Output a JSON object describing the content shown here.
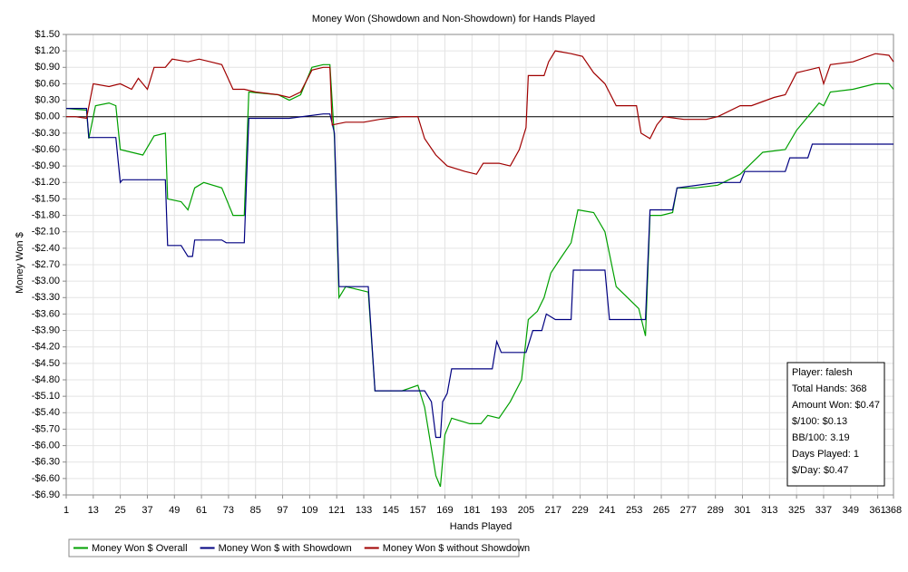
{
  "chart_data": {
    "type": "line",
    "title": "Money Won (Showdown and Non-Showdown) for Hands Played",
    "xlabel": "Hands Played",
    "ylabel": "Money Won $",
    "xlim": [
      1,
      368
    ],
    "ylim": [
      -6.9,
      1.5
    ],
    "grid": true,
    "zero_line": true,
    "legend": "bottom",
    "xticks": [
      1,
      13,
      25,
      37,
      49,
      61,
      73,
      85,
      97,
      109,
      121,
      133,
      145,
      157,
      169,
      181,
      193,
      205,
      217,
      229,
      241,
      253,
      265,
      277,
      289,
      301,
      313,
      325,
      337,
      349,
      361,
      368
    ],
    "yticks": [
      {
        "value": 1.5,
        "label": "$1.50"
      },
      {
        "value": 1.2,
        "label": "$1.20"
      },
      {
        "value": 0.9,
        "label": "$0.90"
      },
      {
        "value": 0.6,
        "label": "$0.60"
      },
      {
        "value": 0.3,
        "label": "$0.30"
      },
      {
        "value": 0,
        "label": "$0.00"
      },
      {
        "value": -0.3,
        "label": "-$0.30"
      },
      {
        "value": -0.6,
        "label": "-$0.60"
      },
      {
        "value": -0.9,
        "label": "-$0.90"
      },
      {
        "value": -1.2,
        "label": "-$1.20"
      },
      {
        "value": -1.5,
        "label": "-$1.50"
      },
      {
        "value": -1.8,
        "label": "-$1.80"
      },
      {
        "value": -2.1,
        "label": "-$2.10"
      },
      {
        "value": -2.4,
        "label": "-$2.40"
      },
      {
        "value": -2.7,
        "label": "-$2.70"
      },
      {
        "value": -3.0,
        "label": "-$3.00"
      },
      {
        "value": -3.3,
        "label": "-$3.30"
      },
      {
        "value": -3.6,
        "label": "-$3.60"
      },
      {
        "value": -3.9,
        "label": "-$3.90"
      },
      {
        "value": -4.2,
        "label": "-$4.20"
      },
      {
        "value": -4.5,
        "label": "-$4.50"
      },
      {
        "value": -4.8,
        "label": "-$4.80"
      },
      {
        "value": -5.1,
        "label": "-$5.10"
      },
      {
        "value": -5.4,
        "label": "-$5.40"
      },
      {
        "value": -5.7,
        "label": "-$5.70"
      },
      {
        "value": -6.0,
        "label": "-$6.00"
      },
      {
        "value": -6.3,
        "label": "-$6.30"
      },
      {
        "value": -6.6,
        "label": "-$6.60"
      },
      {
        "value": -6.9,
        "label": "-$6.90"
      }
    ],
    "series": [
      {
        "name": "Money Won $ Overall",
        "color": "#00a000",
        "x": [
          1,
          10,
          11,
          14,
          20,
          23,
          25,
          30,
          35,
          40,
          45,
          46,
          52,
          55,
          58,
          62,
          70,
          75,
          80,
          82,
          95,
          100,
          105,
          110,
          115,
          118,
          120,
          122,
          125,
          135,
          138,
          150,
          157,
          160,
          165,
          167,
          169,
          172,
          180,
          185,
          188,
          193,
          198,
          203,
          206,
          210,
          213,
          216,
          220,
          225,
          228,
          235,
          240,
          245,
          250,
          255,
          258,
          260,
          265,
          270,
          272,
          280,
          290,
          300,
          305,
          310,
          320,
          325,
          330,
          332,
          335,
          337,
          340,
          350,
          360,
          366,
          368
        ],
        "values": [
          0.15,
          0.12,
          -0.4,
          0.2,
          0.25,
          0.2,
          -0.6,
          -0.65,
          -0.7,
          -0.35,
          -0.3,
          -1.5,
          -1.55,
          -1.7,
          -1.3,
          -1.2,
          -1.3,
          -1.8,
          -1.8,
          0.45,
          0.4,
          0.3,
          0.4,
          0.9,
          0.95,
          0.95,
          -0.4,
          -3.3,
          -3.1,
          -3.2,
          -5.0,
          -5.0,
          -4.9,
          -5.3,
          -6.55,
          -6.75,
          -5.8,
          -5.5,
          -5.6,
          -5.6,
          -5.45,
          -5.5,
          -5.2,
          -4.8,
          -3.7,
          -3.55,
          -3.3,
          -2.85,
          -2.6,
          -2.3,
          -1.7,
          -1.75,
          -2.1,
          -3.1,
          -3.3,
          -3.5,
          -4.0,
          -1.8,
          -1.8,
          -1.75,
          -1.3,
          -1.3,
          -1.25,
          -1.05,
          -0.85,
          -0.65,
          -0.6,
          -0.25,
          0.0,
          0.1,
          0.25,
          0.2,
          0.45,
          0.5,
          0.6,
          0.6,
          0.5
        ]
      },
      {
        "name": "Money Won $ with Showdown",
        "color": "#000080",
        "x": [
          1,
          10,
          11,
          20,
          23,
          25,
          26,
          45,
          46,
          52,
          55,
          57,
          58,
          70,
          72,
          80,
          82,
          100,
          115,
          118,
          120,
          122,
          125,
          135,
          138,
          145,
          160,
          163,
          165,
          167,
          168,
          170,
          172,
          185,
          190,
          192,
          194,
          205,
          208,
          212,
          214,
          218,
          225,
          226,
          240,
          242,
          258,
          260,
          270,
          272,
          290,
          300,
          302,
          320,
          322,
          330,
          332,
          368
        ],
        "values": [
          0.15,
          0.15,
          -0.38,
          -0.38,
          -0.38,
          -1.2,
          -1.15,
          -1.15,
          -2.35,
          -2.35,
          -2.55,
          -2.55,
          -2.25,
          -2.25,
          -2.3,
          -2.3,
          -0.03,
          -0.03,
          0.05,
          0.05,
          -0.3,
          -3.1,
          -3.1,
          -3.1,
          -5.0,
          -5.0,
          -5.0,
          -5.2,
          -5.85,
          -5.85,
          -5.2,
          -5.05,
          -4.6,
          -4.6,
          -4.6,
          -4.1,
          -4.3,
          -4.3,
          -3.9,
          -3.9,
          -3.6,
          -3.7,
          -3.7,
          -2.8,
          -2.8,
          -3.7,
          -3.7,
          -1.7,
          -1.7,
          -1.3,
          -1.2,
          -1.2,
          -1.0,
          -1.0,
          -0.75,
          -0.75,
          -0.5,
          -0.5
        ]
      },
      {
        "name": "Money Won $ without Showdown",
        "color": "#a00000",
        "x": [
          1,
          5,
          10,
          13,
          20,
          25,
          30,
          33,
          37,
          40,
          45,
          48,
          55,
          60,
          65,
          70,
          75,
          80,
          85,
          95,
          100,
          105,
          110,
          115,
          118,
          119,
          125,
          133,
          140,
          150,
          157,
          160,
          165,
          170,
          178,
          183,
          186,
          193,
          198,
          202,
          205,
          206,
          213,
          215,
          218,
          225,
          230,
          235,
          240,
          245,
          250,
          254,
          256,
          260,
          263,
          266,
          275,
          285,
          290,
          300,
          305,
          315,
          320,
          325,
          330,
          335,
          337,
          340,
          350,
          360,
          366,
          368
        ],
        "values": [
          0.0,
          0.0,
          -0.03,
          0.6,
          0.55,
          0.6,
          0.5,
          0.7,
          0.5,
          0.9,
          0.9,
          1.05,
          1.0,
          1.05,
          1.0,
          0.95,
          0.5,
          0.5,
          0.45,
          0.4,
          0.35,
          0.45,
          0.85,
          0.9,
          0.9,
          -0.15,
          -0.1,
          -0.1,
          -0.05,
          0.0,
          0.0,
          -0.4,
          -0.7,
          -0.9,
          -1.0,
          -1.05,
          -0.85,
          -0.85,
          -0.9,
          -0.6,
          -0.2,
          0.75,
          0.75,
          1.0,
          1.2,
          1.15,
          1.1,
          0.8,
          0.6,
          0.2,
          0.2,
          0.2,
          -0.3,
          -0.4,
          -0.15,
          0.0,
          -0.05,
          -0.05,
          0.0,
          0.2,
          0.2,
          0.35,
          0.4,
          0.8,
          0.85,
          0.9,
          0.6,
          0.95,
          1.0,
          1.15,
          1.12,
          1.0
        ]
      }
    ],
    "annotations": [
      "Player: falesh",
      "Total Hands: 368",
      "Amount Won: $0.47",
      "$/100: $0.13",
      "BB/100: 3.19",
      "Days Played: 1",
      "$/Day: $0.47"
    ]
  }
}
